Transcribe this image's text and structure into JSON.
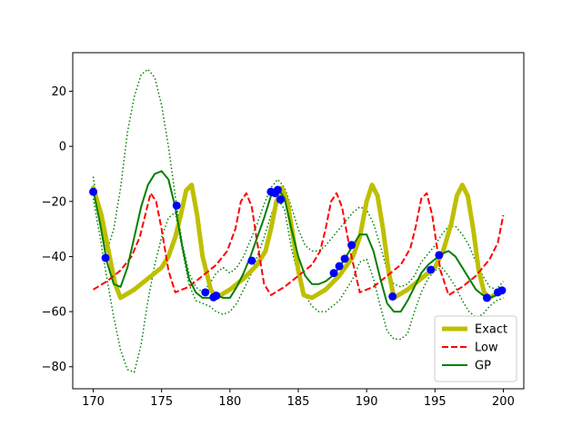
{
  "chart_data": {
    "type": "line",
    "title": "",
    "xlabel": "",
    "ylabel": "",
    "xlim": [
      168.5,
      201.5
    ],
    "ylim": [
      -88,
      34
    ],
    "xticks": [
      170,
      175,
      180,
      185,
      190,
      195,
      200
    ],
    "yticks": [
      -80,
      -60,
      -40,
      -20,
      0,
      20
    ],
    "grid": false,
    "legend_position": "lower-right",
    "series": [
      {
        "name": "Exact",
        "color": "#bfbf00",
        "style": "solid-thick",
        "x": [
          170,
          170.6,
          171.2,
          171.6,
          172,
          173,
          174,
          175,
          175.5,
          176,
          176.4,
          176.8,
          177.2,
          177.6,
          178,
          178.6,
          179,
          180,
          181,
          182,
          182.6,
          183,
          183.4,
          183.8,
          184.2,
          184.6,
          185,
          185.4,
          186,
          187,
          188,
          189,
          189.5,
          190,
          190.4,
          190.8,
          191.2,
          191.6,
          192,
          193,
          194,
          195,
          195.6,
          196.2,
          196.6,
          197,
          197.4,
          197.8,
          198.2,
          198.6,
          199,
          200
        ],
        "y": [
          -15,
          -25,
          -40,
          -50,
          -55,
          -52,
          -48,
          -44,
          -40,
          -33,
          -25,
          -16,
          -14,
          -25,
          -40,
          -52,
          -55,
          -52,
          -48,
          -43,
          -38,
          -30,
          -20,
          -15,
          -20,
          -32,
          -45,
          -54,
          -55,
          -52,
          -47,
          -40,
          -33,
          -20,
          -14,
          -18,
          -30,
          -45,
          -55,
          -52,
          -48,
          -44,
          -38,
          -28,
          -18,
          -14,
          -18,
          -30,
          -45,
          -53,
          -55,
          -52
        ]
      },
      {
        "name": "Low",
        "color": "#ff0000",
        "style": "dashed",
        "x": [
          170,
          171,
          172,
          172.8,
          173.4,
          173.8,
          174.2,
          174.6,
          175,
          175.5,
          176,
          177,
          178,
          179,
          179.8,
          180.4,
          180.8,
          181.2,
          181.6,
          182,
          182.5,
          183,
          184,
          185,
          186,
          186.6,
          187,
          187.4,
          187.8,
          188.2,
          188.8,
          189.5,
          190.5,
          191.5,
          192.5,
          193.2,
          193.6,
          194,
          194.4,
          194.8,
          195.4,
          196,
          197,
          198,
          199,
          199.6,
          200
        ],
        "y": [
          -52,
          -49,
          -45,
          -40,
          -33,
          -25,
          -17,
          -20,
          -30,
          -45,
          -53,
          -51,
          -47,
          -43,
          -38,
          -30,
          -20,
          -17,
          -22,
          -35,
          -50,
          -54,
          -51,
          -47,
          -43,
          -38,
          -30,
          -20,
          -17,
          -22,
          -38,
          -53,
          -51,
          -47,
          -43,
          -37,
          -29,
          -19,
          -17,
          -25,
          -45,
          -54,
          -51,
          -47,
          -41,
          -35,
          -25
        ]
      },
      {
        "name": "GP",
        "color": "#008000",
        "style": "solid",
        "x": [
          170,
          170.5,
          171,
          171.5,
          172,
          172.5,
          173,
          173.5,
          174,
          174.5,
          175,
          175.5,
          176,
          176.5,
          177,
          177.5,
          178,
          178.5,
          179,
          179.5,
          180,
          180.5,
          181,
          181.5,
          182,
          182.5,
          183,
          183.5,
          184,
          184.5,
          185,
          185.5,
          186,
          186.5,
          187,
          187.5,
          188,
          188.5,
          189,
          189.5,
          190,
          190.5,
          191,
          191.5,
          192,
          192.5,
          193,
          193.5,
          194,
          194.5,
          195,
          195.5,
          196,
          196.5,
          197,
          197.5,
          198,
          198.5,
          199,
          199.5,
          200
        ],
        "y": [
          -16,
          -28,
          -42,
          -50,
          -51,
          -44,
          -33,
          -22,
          -14,
          -10,
          -9,
          -12,
          -22,
          -36,
          -48,
          -53,
          -55,
          -55,
          -54,
          -55,
          -55,
          -51,
          -46,
          -40,
          -33,
          -26,
          -18,
          -15,
          -19,
          -30,
          -40,
          -47,
          -50,
          -50,
          -49,
          -47,
          -44,
          -40,
          -36,
          -32,
          -32,
          -38,
          -48,
          -57,
          -60,
          -60,
          -56,
          -51,
          -46,
          -43,
          -41,
          -39,
          -38,
          -40,
          -44,
          -48,
          -52,
          -54,
          -55,
          -54,
          -52
        ]
      },
      {
        "name": "",
        "color": "#008000",
        "style": "dotted-upper",
        "x": [
          170,
          170.5,
          171,
          171.5,
          172,
          172.5,
          173,
          173.5,
          174,
          174.5,
          175,
          175.5,
          176,
          176.5,
          177,
          177.5,
          178,
          178.5,
          179,
          179.5,
          180,
          180.5,
          181,
          181.5,
          182,
          182.5,
          183,
          183.5,
          184,
          184.5,
          185,
          185.5,
          186,
          186.5,
          187,
          187.5,
          188,
          188.5,
          189,
          189.5,
          190,
          190.5,
          191,
          191.5,
          192,
          192.5,
          193,
          193.5,
          194,
          194.5,
          195,
          195.5,
          196,
          196.5,
          197,
          197.5,
          198,
          198.5,
          199,
          199.5,
          200
        ],
        "y": [
          -11,
          -28,
          -38,
          -30,
          -15,
          5,
          18,
          26,
          28,
          25,
          15,
          0,
          -18,
          -35,
          -46,
          -51,
          -53,
          -50,
          -46,
          -44,
          -46,
          -44,
          -40,
          -34,
          -28,
          -21,
          -15,
          -12,
          -15,
          -22,
          -30,
          -36,
          -38,
          -38,
          -36,
          -33,
          -30,
          -27,
          -24,
          -22,
          -23,
          -28,
          -36,
          -45,
          -50,
          -51,
          -50,
          -47,
          -42,
          -39,
          -36,
          -32,
          -29,
          -29,
          -32,
          -36,
          -42,
          -47,
          -51,
          -52,
          -49
        ]
      },
      {
        "name": "",
        "color": "#008000",
        "style": "dotted-lower",
        "x": [
          170,
          170.5,
          171,
          171.5,
          172,
          172.5,
          173,
          173.5,
          174,
          174.5,
          175,
          175.5,
          176,
          176.5,
          177,
          177.5,
          178,
          178.5,
          179,
          179.5,
          180,
          180.5,
          181,
          181.5,
          182,
          182.5,
          183,
          183.5,
          184,
          184.5,
          185,
          185.5,
          186,
          186.5,
          187,
          187.5,
          188,
          188.5,
          189,
          189.5,
          190,
          190.5,
          191,
          191.5,
          192,
          192.5,
          193,
          193.5,
          194,
          194.5,
          195,
          195.5,
          196,
          196.5,
          197,
          197.5,
          198,
          198.5,
          199,
          199.5,
          200
        ],
        "y": [
          -19,
          -33,
          -48,
          -62,
          -74,
          -81,
          -82,
          -72,
          -56,
          -43,
          -33,
          -26,
          -24,
          -37,
          -50,
          -56,
          -57,
          -58,
          -60,
          -61,
          -60,
          -57,
          -52,
          -47,
          -40,
          -33,
          -25,
          -19,
          -23,
          -37,
          -47,
          -54,
          -58,
          -60,
          -60,
          -58,
          -56,
          -52,
          -48,
          -42,
          -41,
          -48,
          -58,
          -67,
          -70,
          -70,
          -68,
          -60,
          -53,
          -48,
          -45,
          -44,
          -47,
          -51,
          -56,
          -60,
          -62,
          -61,
          -58,
          -56,
          -55
        ]
      }
    ],
    "points": {
      "name": "",
      "color": "#0000ff",
      "x": [
        170,
        170.9,
        176.1,
        178.2,
        178.8,
        179,
        181.6,
        183,
        183.3,
        183.5,
        183.7,
        187.6,
        188,
        188.4,
        188.9,
        191.9,
        194.7,
        195.3,
        198.8,
        199.6,
        199.9
      ],
      "y": [
        -16.5,
        -40.5,
        -21.5,
        -53,
        -54.8,
        -54.2,
        -41.5,
        -16.5,
        -17,
        -15.8,
        -19.3,
        -46,
        -43.5,
        -40.8,
        -35.8,
        -54.5,
        -44.8,
        -39.5,
        -55,
        -53,
        -52.3
      ]
    }
  }
}
